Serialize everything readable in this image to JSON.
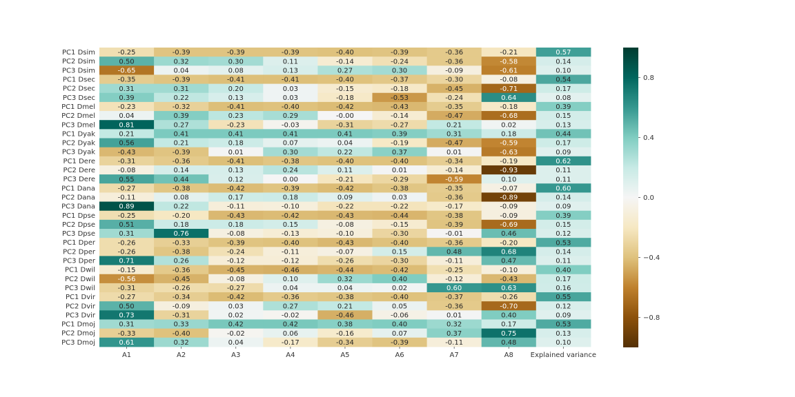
{
  "chart_data": {
    "type": "heatmap",
    "columns": [
      "A1",
      "A2",
      "A3",
      "A4",
      "A5",
      "A6",
      "A7",
      "A8",
      "Explained variance"
    ],
    "rows": [
      {
        "label": "PC1 Dsim",
        "values": [
          -0.25,
          -0.39,
          -0.39,
          -0.39,
          -0.4,
          -0.39,
          -0.36,
          -0.21,
          0.57
        ]
      },
      {
        "label": "PC2 Dsim",
        "values": [
          0.5,
          0.32,
          0.3,
          0.11,
          -0.14,
          -0.24,
          -0.36,
          -0.58,
          0.14
        ]
      },
      {
        "label": "PC3 Dsim",
        "values": [
          -0.65,
          0.04,
          0.08,
          0.13,
          0.27,
          0.3,
          -0.09,
          -0.61,
          0.1
        ]
      },
      {
        "label": "PC1 Dsec",
        "values": [
          -0.35,
          -0.39,
          -0.41,
          -0.41,
          -0.4,
          -0.37,
          -0.3,
          -0.08,
          0.54
        ]
      },
      {
        "label": "PC2 Dsec",
        "values": [
          0.31,
          0.31,
          0.2,
          0.03,
          -0.15,
          -0.18,
          -0.45,
          -0.71,
          0.17
        ]
      },
      {
        "label": "PC3 Dsec",
        "values": [
          0.39,
          0.22,
          0.13,
          0.03,
          -0.18,
          -0.53,
          -0.24,
          0.64,
          0.08
        ]
      },
      {
        "label": "PC1 Dmel",
        "values": [
          -0.23,
          -0.32,
          -0.41,
          -0.4,
          -0.42,
          -0.43,
          -0.35,
          -0.18,
          0.39
        ]
      },
      {
        "label": "PC2 Dmel",
        "values": [
          0.04,
          0.39,
          0.23,
          0.29,
          -0.0,
          -0.14,
          -0.47,
          -0.68,
          0.15
        ]
      },
      {
        "label": "PC3 Dmel",
        "values": [
          0.81,
          0.27,
          -0.23,
          -0.03,
          -0.31,
          -0.27,
          0.21,
          0.02,
          0.13
        ]
      },
      {
        "label": "PC1 Dyak",
        "values": [
          0.21,
          0.41,
          0.41,
          0.41,
          0.41,
          0.39,
          0.31,
          0.18,
          0.44
        ]
      },
      {
        "label": "PC2 Dyak",
        "values": [
          0.56,
          0.21,
          0.18,
          0.07,
          0.04,
          -0.19,
          -0.47,
          -0.59,
          0.17
        ]
      },
      {
        "label": "PC3 Dyak",
        "values": [
          -0.43,
          -0.39,
          0.01,
          0.3,
          0.22,
          0.37,
          0.01,
          -0.63,
          0.09
        ]
      },
      {
        "label": "PC1 Dere",
        "values": [
          -0.31,
          -0.36,
          -0.41,
          -0.38,
          -0.4,
          -0.4,
          -0.34,
          -0.19,
          0.62
        ]
      },
      {
        "label": "PC2 Dere",
        "values": [
          -0.08,
          0.14,
          0.13,
          0.24,
          0.11,
          0.01,
          -0.14,
          -0.93,
          0.11
        ]
      },
      {
        "label": "PC3 Dere",
        "values": [
          0.55,
          0.44,
          0.12,
          0.0,
          -0.21,
          -0.29,
          -0.59,
          0.1,
          0.11
        ]
      },
      {
        "label": "PC1 Dana",
        "values": [
          -0.27,
          -0.38,
          -0.42,
          -0.39,
          -0.42,
          -0.38,
          -0.35,
          -0.07,
          0.6
        ]
      },
      {
        "label": "PC2 Dana",
        "values": [
          -0.11,
          0.08,
          0.17,
          0.18,
          0.09,
          0.03,
          -0.36,
          -0.89,
          0.14
        ]
      },
      {
        "label": "PC3 Dana",
        "values": [
          0.89,
          0.22,
          -0.11,
          -0.1,
          -0.22,
          -0.22,
          -0.17,
          -0.09,
          0.09
        ]
      },
      {
        "label": "PC1 Dpse",
        "values": [
          -0.25,
          -0.2,
          -0.43,
          -0.42,
          -0.43,
          -0.44,
          -0.38,
          -0.09,
          0.39
        ]
      },
      {
        "label": "PC2 Dpse",
        "values": [
          0.51,
          0.18,
          0.18,
          0.15,
          -0.08,
          -0.15,
          -0.39,
          -0.69,
          0.15
        ]
      },
      {
        "label": "PC3 Dpse",
        "values": [
          0.31,
          0.76,
          -0.08,
          -0.13,
          -0.1,
          -0.3,
          -0.01,
          0.46,
          0.12
        ]
      },
      {
        "label": "PC1 Dper",
        "values": [
          -0.26,
          -0.33,
          -0.39,
          -0.4,
          -0.43,
          -0.4,
          -0.36,
          -0.2,
          0.53
        ]
      },
      {
        "label": "PC2 Dper",
        "values": [
          -0.26,
          -0.38,
          -0.24,
          -0.11,
          -0.07,
          0.15,
          0.48,
          0.68,
          0.14
        ]
      },
      {
        "label": "PC3 Dper",
        "values": [
          0.71,
          0.26,
          -0.12,
          -0.12,
          -0.26,
          -0.3,
          -0.11,
          0.47,
          0.11
        ]
      },
      {
        "label": "PC1 Dwil",
        "values": [
          -0.15,
          -0.36,
          -0.45,
          -0.46,
          -0.44,
          -0.42,
          -0.25,
          -0.1,
          0.4
        ]
      },
      {
        "label": "PC2 Dwil",
        "values": [
          -0.56,
          -0.45,
          -0.08,
          0.1,
          0.32,
          0.4,
          -0.12,
          -0.43,
          0.17
        ]
      },
      {
        "label": "PC3 Dwil",
        "values": [
          -0.31,
          -0.26,
          -0.27,
          0.04,
          0.04,
          0.02,
          0.6,
          0.63,
          0.16
        ]
      },
      {
        "label": "PC1 Dvir",
        "values": [
          -0.27,
          -0.34,
          -0.42,
          -0.36,
          -0.38,
          -0.4,
          -0.37,
          -0.26,
          0.55
        ]
      },
      {
        "label": "PC2 Dvir",
        "values": [
          0.5,
          -0.09,
          0.03,
          0.27,
          0.21,
          0.05,
          -0.36,
          -0.7,
          0.12
        ]
      },
      {
        "label": "PC3 Dvir",
        "values": [
          0.73,
          -0.31,
          0.02,
          -0.02,
          -0.46,
          -0.06,
          0.01,
          0.4,
          0.09
        ]
      },
      {
        "label": "PC1 Dmoj",
        "values": [
          0.31,
          0.33,
          0.42,
          0.42,
          0.38,
          0.4,
          0.32,
          0.17,
          0.53
        ]
      },
      {
        "label": "PC2 Dmoj",
        "values": [
          -0.33,
          -0.4,
          -0.02,
          0.06,
          -0.16,
          0.07,
          0.37,
          0.75,
          0.13
        ]
      },
      {
        "label": "PC3 Dmoj",
        "values": [
          0.61,
          0.32,
          0.04,
          -0.17,
          -0.34,
          -0.39,
          -0.11,
          0.48,
          0.1
        ]
      }
    ],
    "value_range": [
      -1,
      1
    ],
    "colormap": "BrBG",
    "colorbar_ticks": [
      0.8,
      0.4,
      0.0,
      -0.4,
      -0.8
    ],
    "colorbar_tick_labels": [
      "0.8",
      "0.4",
      "0.0",
      "−0.4",
      "−0.8"
    ],
    "annotation_format": "two decimals",
    "grid": false
  }
}
